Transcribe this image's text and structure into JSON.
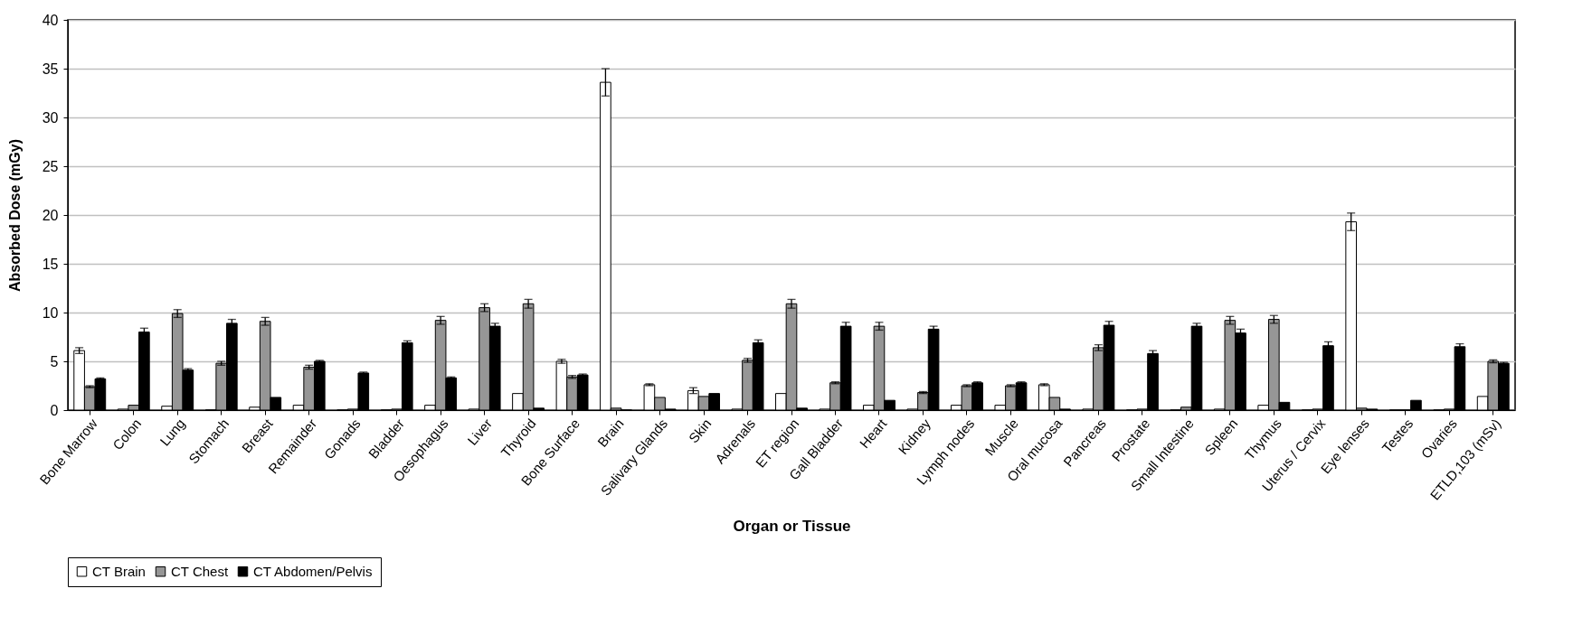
{
  "chart_data": {
    "type": "bar",
    "xlabel": "Organ or Tissue",
    "ylabel": "Absorbed Dose (mGy)",
    "categories": [
      "Bone Marrow",
      "Colon",
      "Lung",
      "Stomach",
      "Breast",
      "Remainder",
      "Gonads",
      "Bladder",
      "Oesophagus",
      "Liver",
      "Thyroid",
      "Bone Surface",
      "Brain",
      "Salivary Glands",
      "Skin",
      "Adrenals",
      "ET region",
      "Gall Bladder",
      "Heart",
      "Kidney",
      "Lymph nodes",
      "Muscle",
      "Oral mucosa",
      "Pancreas",
      "Prostate",
      "Small Intestine",
      "Spleen",
      "Thymus",
      "Uterus / Cervix",
      "Eye lenses",
      "Testes",
      "Ovaries",
      "ETLD,103 (mSv)"
    ],
    "series": [
      {
        "name": "CT Brain",
        "color": "#ffffff",
        "values": [
          6.1,
          0.1,
          0.4,
          0,
          0.3,
          0.5,
          0,
          0,
          0.5,
          0.1,
          1.7,
          5.0,
          33.6,
          2.6,
          2.0,
          0.1,
          1.7,
          0.1,
          0.5,
          0.1,
          0.5,
          0.5,
          2.6,
          0.1,
          0,
          0,
          0.1,
          0.5,
          0,
          19.3,
          0,
          0,
          1.4
        ],
        "errors": [
          0.3,
          null,
          null,
          null,
          null,
          null,
          null,
          null,
          null,
          null,
          null,
          0.2,
          1.4,
          0.1,
          0.3,
          null,
          null,
          null,
          null,
          null,
          null,
          null,
          0.1,
          null,
          null,
          null,
          null,
          null,
          null,
          0.9,
          null,
          null,
          null
        ]
      },
      {
        "name": "CT Chest",
        "color": "#969696",
        "values": [
          2.4,
          0.5,
          9.9,
          4.8,
          9.1,
          4.4,
          0.1,
          0.1,
          9.2,
          10.5,
          10.9,
          3.4,
          0.2,
          1.3,
          1.4,
          5.1,
          10.9,
          2.8,
          8.6,
          1.8,
          2.5,
          2.5,
          1.3,
          6.4,
          0.1,
          0.3,
          9.2,
          9.3,
          0.1,
          0.2,
          0,
          0.1,
          5.0
        ],
        "errors": [
          0.1,
          null,
          0.4,
          0.2,
          0.4,
          0.2,
          null,
          null,
          0.4,
          0.4,
          0.45,
          0.15,
          null,
          null,
          null,
          0.2,
          0.45,
          0.1,
          0.4,
          0.1,
          0.1,
          0.1,
          null,
          0.3,
          null,
          null,
          0.4,
          0.4,
          null,
          null,
          null,
          null,
          0.15
        ]
      },
      {
        "name": "CT Abdomen/Pelvis",
        "color": "#000000",
        "values": [
          3.2,
          8.0,
          4.1,
          8.9,
          1.3,
          5.0,
          3.8,
          6.9,
          3.3,
          8.6,
          0.2,
          3.6,
          0,
          0.1,
          1.7,
          6.9,
          0.2,
          8.6,
          1.0,
          8.3,
          2.8,
          2.8,
          0.1,
          8.7,
          5.8,
          8.6,
          7.9,
          0.8,
          6.6,
          0.1,
          1.0,
          6.5,
          4.8
        ],
        "errors": [
          0.1,
          0.4,
          0.15,
          0.4,
          null,
          0.1,
          0.1,
          0.2,
          0.1,
          0.3,
          null,
          0.1,
          null,
          null,
          null,
          0.3,
          null,
          0.4,
          null,
          0.3,
          0.1,
          0.1,
          null,
          0.4,
          0.3,
          0.3,
          0.4,
          null,
          0.4,
          null,
          null,
          0.3,
          0.1
        ]
      }
    ],
    "ylim": [
      0,
      40
    ],
    "yticks": [
      0,
      5,
      10,
      15,
      20,
      25,
      30,
      35,
      40
    ],
    "grid": "y",
    "legend": "bottom"
  }
}
